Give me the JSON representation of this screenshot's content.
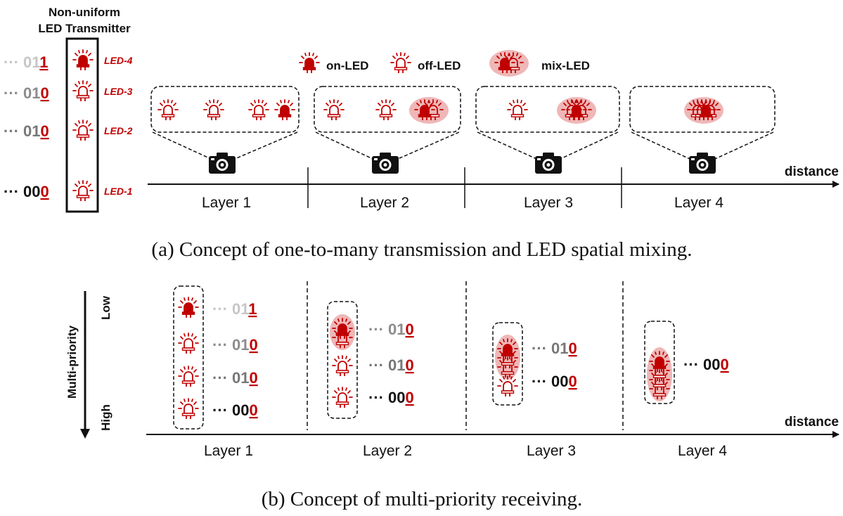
{
  "colors": {
    "led": "#c00000",
    "halo": "#efb7b7",
    "dark": "#111111",
    "gray": "#8c8c8c",
    "light": "#c6c6c6"
  },
  "transmitter": {
    "title_line1": "Non-uniform",
    "title_line2": "LED Transmitter",
    "rows": [
      {
        "prefix": "···",
        "code_head": "01",
        "code_last": "1",
        "led_label": "LED-4",
        "state": "on"
      },
      {
        "prefix": "···",
        "code_head": "01",
        "code_last": "0",
        "led_label": "LED-3",
        "state": "off"
      },
      {
        "prefix": "···",
        "code_head": "01",
        "code_last": "0",
        "led_label": "LED-2",
        "state": "off"
      },
      {
        "prefix": "···",
        "code_head": "00",
        "code_last": "0",
        "led_label": "LED-1",
        "state": "off"
      }
    ]
  },
  "legend": {
    "on": "on-LED",
    "off": "off-LED",
    "mix": "mix-LED"
  },
  "panel_a": {
    "axis_label": "distance",
    "layers": [
      "Layer 1",
      "Layer 2",
      "Layer 3",
      "Layer 4"
    ],
    "caption": "(a) Concept of one-to-many transmission and LED spatial mixing.",
    "camera_icon": "camera-icon"
  },
  "panel_b": {
    "axis_label": "distance",
    "priority_label": "Multi-priority",
    "low_label": "Low",
    "high_label": "High",
    "layers": [
      "Layer 1",
      "Layer 2",
      "Layer 3",
      "Layer 4"
    ],
    "codes": {
      "l1": [
        {
          "prefix": "···",
          "head": "01",
          "last": "1"
        },
        {
          "prefix": "···",
          "head": "01",
          "last": "0"
        },
        {
          "prefix": "···",
          "head": "01",
          "last": "0"
        },
        {
          "prefix": "···",
          "head": "00",
          "last": "0"
        }
      ],
      "l2": [
        {
          "prefix": "···",
          "head": "01",
          "last": "0"
        },
        {
          "prefix": "···",
          "head": "01",
          "last": "0"
        },
        {
          "prefix": "···",
          "head": "00",
          "last": "0"
        }
      ],
      "l3": [
        {
          "prefix": "···",
          "head": "01",
          "last": "0"
        },
        {
          "prefix": "···",
          "head": "00",
          "last": "0"
        }
      ],
      "l4": [
        {
          "prefix": "···",
          "head": "00",
          "last": "0"
        }
      ]
    },
    "caption": "(b) Concept of multi-priority receiving."
  }
}
